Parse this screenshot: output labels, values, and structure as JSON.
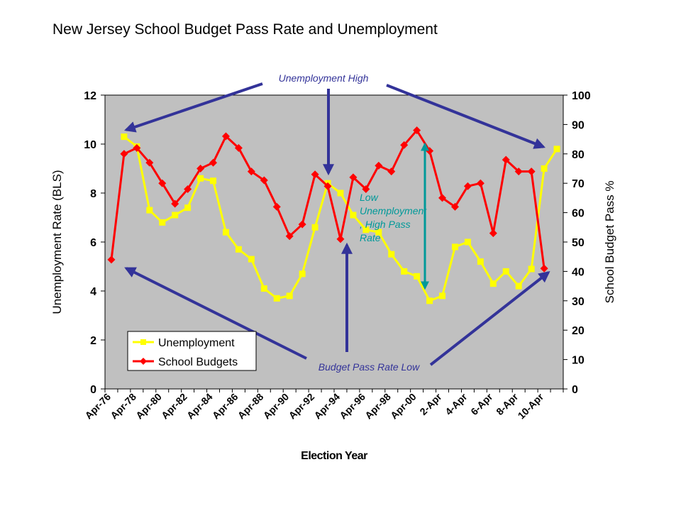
{
  "chart_data": {
    "type": "line",
    "title": "New Jersey School Budget Pass Rate and Unemployment",
    "xlabel": "Election Year",
    "ylabel_left": "Unemployment Rate (BLS)",
    "ylabel_right": "School Budget Pass %",
    "ylim_left": [
      0,
      12
    ],
    "ylim_right": [
      0,
      100
    ],
    "yticks_left": [
      "0",
      "2",
      "4",
      "6",
      "8",
      "10",
      "12"
    ],
    "yticks_right": [
      "0",
      "10",
      "20",
      "30",
      "40",
      "50",
      "60",
      "70",
      "80",
      "90",
      "100"
    ],
    "x_tick_labels": [
      "Apr-76",
      "Apr-78",
      "Apr-80",
      "Apr-82",
      "Apr-84",
      "Apr-86",
      "Apr-88",
      "Apr-90",
      "Apr-92",
      "Apr-94",
      "Apr-96",
      "Apr-98",
      "Apr-00",
      "2-Apr",
      "4-Apr",
      "6-Apr",
      "8-Apr",
      "10-Apr"
    ],
    "x_years": [
      1976,
      1977,
      1978,
      1979,
      1980,
      1981,
      1982,
      1983,
      1984,
      1985,
      1986,
      1987,
      1988,
      1989,
      1990,
      1991,
      1992,
      1993,
      1994,
      1995,
      1996,
      1997,
      1998,
      1999,
      2000,
      2001,
      2002,
      2003,
      2004,
      2005,
      2006,
      2007,
      2008,
      2009,
      2010,
      2011
    ],
    "grid": false,
    "plot_background": "#c0c0c0",
    "legend": "bottom-left",
    "series": [
      {
        "name": "Unemployment",
        "axis": "left",
        "color": "#ffff00",
        "marker": "square",
        "values": [
          null,
          10.3,
          9.9,
          7.3,
          6.8,
          7.1,
          7.4,
          8.6,
          8.5,
          6.4,
          5.7,
          5.3,
          4.1,
          3.7,
          3.8,
          4.7,
          6.6,
          8.4,
          8.0,
          7.1,
          6.5,
          6.4,
          5.5,
          4.8,
          4.6,
          3.6,
          3.8,
          5.8,
          6.0,
          5.2,
          4.3,
          4.8,
          4.2,
          4.9,
          9.0,
          9.8
        ]
      },
      {
        "name": "School Budgets",
        "axis": "right",
        "color": "#ff0000",
        "marker": "diamond",
        "values": [
          44,
          80,
          82,
          77,
          70,
          63,
          68,
          75,
          77,
          86,
          82,
          74,
          71,
          62,
          52,
          56,
          73,
          69,
          51,
          72,
          68,
          76,
          74,
          83,
          88,
          81,
          65,
          62,
          69,
          70,
          53,
          78,
          74,
          74,
          41,
          null
        ]
      }
    ],
    "annotations": {
      "unemployment_high": "Unemployment High",
      "low_unemp_line1": "Low",
      "low_unemp_line2": "Unemployment",
      "low_unemp_line3": ", High Pass",
      "low_unemp_line4": "Rate",
      "budget_pass_low": "Budget Pass Rate Low"
    },
    "annotation_colors": {
      "arrow": "#333399",
      "teal": "#009999"
    }
  }
}
